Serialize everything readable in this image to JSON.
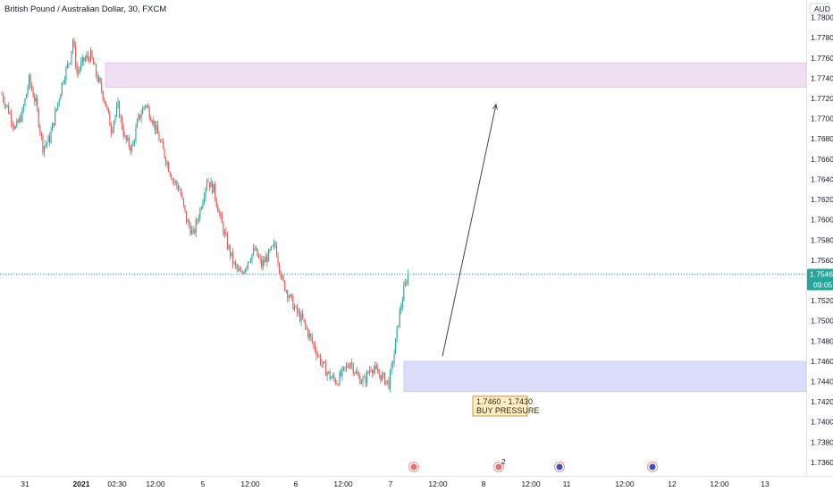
{
  "header": {
    "title": "British Pound / Australian Dollar, 30, FXCM",
    "currency": "AUD"
  },
  "price_tag": {
    "price": "1.75462",
    "countdown": "09:05"
  },
  "zone_label": {
    "line1": "1.7460 - 1.7430",
    "line2": "BUY PRESSURE"
  },
  "colors": {
    "bull": "#26a69a",
    "bear": "#ef5350",
    "price_line": "#26a69a",
    "supply_zone": "#f0dff2",
    "demand_zone": "#dcdcfb",
    "arrow": "#444444",
    "label_bg": "#fdeec8",
    "label_border": "#c89a3c"
  },
  "events": [
    {
      "icon": "uk-flag-event-icon",
      "badge": ""
    },
    {
      "icon": "us-flag-event-icon",
      "badge": "2"
    },
    {
      "icon": "au-flag-event-icon",
      "badge": ""
    },
    {
      "icon": "au-flag-event-icon",
      "badge": ""
    }
  ],
  "chart_data": {
    "type": "candlestick",
    "title": "British Pound / Australian Dollar, 30, FXCM",
    "y_axis": {
      "unit": "AUD",
      "ticks": [
        "1.78000",
        "1.77800",
        "1.77600",
        "1.77400",
        "1.77200",
        "1.77000",
        "1.76800",
        "1.76600",
        "1.76400",
        "1.76200",
        "1.76000",
        "1.75800",
        "1.75600",
        "1.75200",
        "1.75000",
        "1.74800",
        "1.74600",
        "1.74400",
        "1.74200",
        "1.74000",
        "1.73800",
        "1.73600"
      ],
      "range": [
        1.7352,
        1.7812
      ]
    },
    "x_axis": {
      "ticks": [
        "31",
        "2021",
        "02:30",
        "12:00",
        "5",
        "12:00",
        "6",
        "12:00",
        "7",
        "12:00",
        "8",
        "12:00",
        "11",
        "12:00",
        "12",
        "12:00",
        "13"
      ]
    },
    "last_price": 1.75462,
    "zones": [
      {
        "name": "supply",
        "high": 1.7755,
        "low": 1.7731
      },
      {
        "name": "demand",
        "high": 1.746,
        "low": 1.743
      }
    ],
    "projection_arrow": {
      "from_price": 1.7465,
      "to_price": 1.7714
    },
    "waypoints": [
      [
        0,
        1.7724
      ],
      [
        5,
        1.7708
      ],
      [
        10,
        1.769
      ],
      [
        15,
        1.7705
      ],
      [
        20,
        1.7738
      ],
      [
        25,
        1.7715
      ],
      [
        30,
        1.7672
      ],
      [
        35,
        1.768
      ],
      [
        40,
        1.771
      ],
      [
        45,
        1.774
      ],
      [
        50,
        1.776
      ],
      [
        52,
        1.7778
      ],
      [
        55,
        1.7745
      ],
      [
        60,
        1.7758
      ],
      [
        65,
        1.7762
      ],
      [
        70,
        1.774
      ],
      [
        75,
        1.772
      ],
      [
        80,
        1.769
      ],
      [
        85,
        1.7712
      ],
      [
        90,
        1.768
      ],
      [
        95,
        1.767
      ],
      [
        100,
        1.77
      ],
      [
        105,
        1.7715
      ],
      [
        110,
        1.77
      ],
      [
        115,
        1.768
      ],
      [
        120,
        1.766
      ],
      [
        125,
        1.764
      ],
      [
        130,
        1.763
      ],
      [
        135,
        1.76
      ],
      [
        140,
        1.7585
      ],
      [
        145,
        1.761
      ],
      [
        150,
        1.764
      ],
      [
        155,
        1.763
      ],
      [
        160,
        1.76
      ],
      [
        165,
        1.7575
      ],
      [
        170,
        1.7555
      ],
      [
        175,
        1.7545
      ],
      [
        180,
        1.756
      ],
      [
        185,
        1.757
      ],
      [
        190,
        1.7555
      ],
      [
        195,
        1.7565
      ],
      [
        200,
        1.7575
      ],
      [
        205,
        1.754
      ],
      [
        210,
        1.7525
      ],
      [
        215,
        1.751
      ],
      [
        220,
        1.75
      ],
      [
        225,
        1.7485
      ],
      [
        230,
        1.747
      ],
      [
        235,
        1.7455
      ],
      [
        240,
        1.7445
      ],
      [
        245,
        1.744
      ],
      [
        250,
        1.745
      ],
      [
        255,
        1.746
      ],
      [
        260,
        1.7445
      ],
      [
        265,
        1.744
      ],
      [
        270,
        1.7455
      ],
      [
        275,
        1.7448
      ],
      [
        280,
        1.7442
      ],
      [
        283,
        1.7438
      ],
      [
        287,
        1.7468
      ],
      [
        290,
        1.75
      ],
      [
        294,
        1.753
      ],
      [
        297,
        1.75462
      ]
    ]
  }
}
